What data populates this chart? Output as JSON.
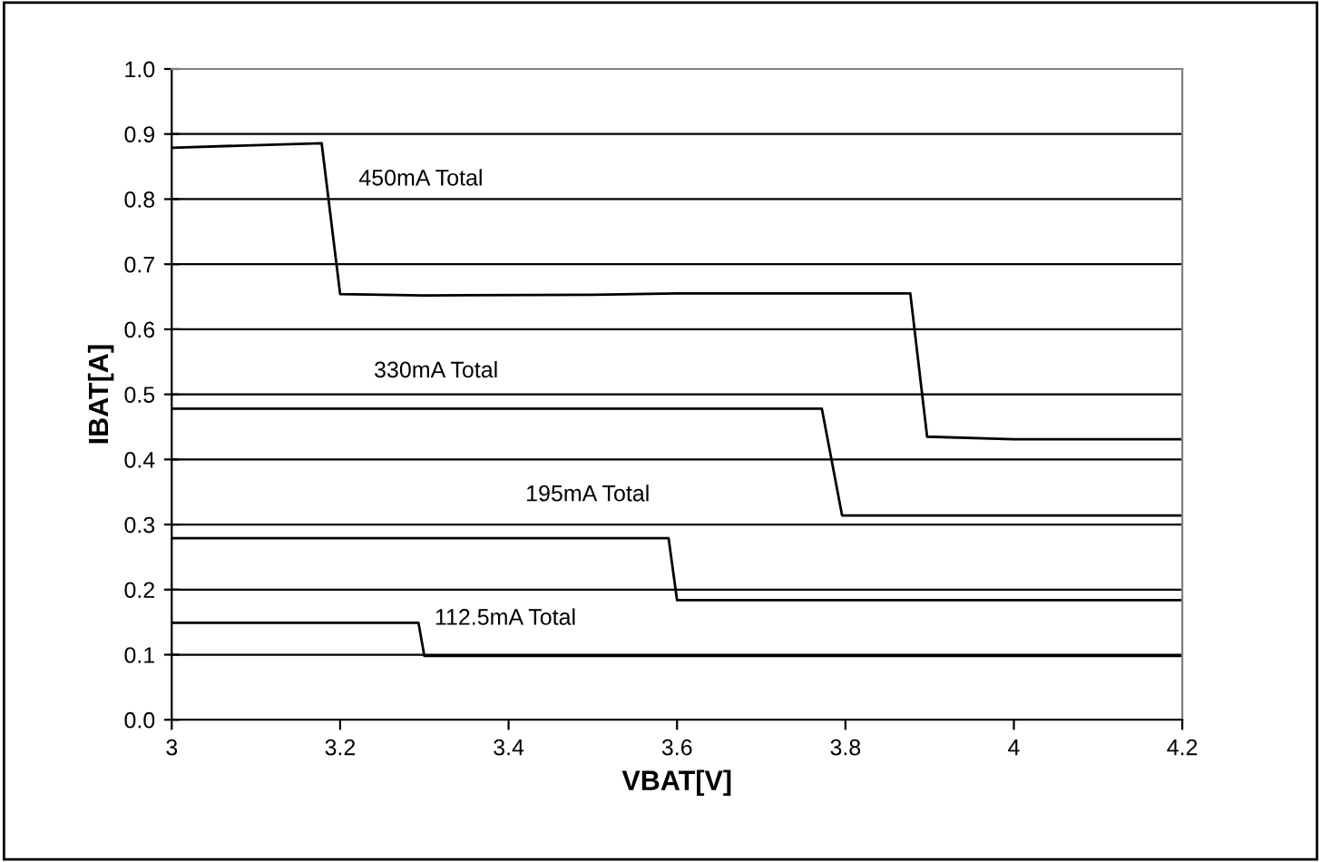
{
  "chart_data": {
    "type": "line",
    "xlabel": "VBAT[V]",
    "ylabel": "IBAT[A]",
    "series": [
      {
        "name": "450mA Total",
        "color": "#000000",
        "x": [
          3,
          3.178,
          3.2,
          3.3,
          3.5,
          3.6,
          3.877,
          3.897,
          4.0,
          4.2
        ],
        "values": [
          0.879,
          0.886,
          0.654,
          0.652,
          0.653,
          0.655,
          0.655,
          0.435,
          0.431,
          0.431
        ]
      },
      {
        "name": "330mA Total",
        "color": "#000000",
        "x": [
          3,
          3.772,
          3.796,
          4.2
        ],
        "values": [
          0.478,
          0.478,
          0.314,
          0.314
        ]
      },
      {
        "name": "195mA Total",
        "color": "#000000",
        "x": [
          3,
          3.59,
          3.6,
          4.2
        ],
        "values": [
          0.279,
          0.279,
          0.184,
          0.184
        ]
      },
      {
        "name": "112.5mA Total",
        "color": "#000000",
        "x": [
          3,
          3.293,
          3.3,
          4.2
        ],
        "values": [
          0.149,
          0.149,
          0.098,
          0.098
        ]
      }
    ],
    "xlim": [
      3,
      4.2
    ],
    "xticks": [
      3,
      3.2,
      3.4,
      3.6,
      3.8,
      4,
      4.2
    ],
    "ylim": [
      0,
      1
    ],
    "yticks": [
      {
        "value": 0,
        "label": "0.0"
      },
      {
        "value": 0.1,
        "label": "0.1"
      },
      {
        "value": 0.2,
        "label": "0.2"
      },
      {
        "value": 0.3,
        "label": "0.3"
      },
      {
        "value": 0.4,
        "label": "0.4"
      },
      {
        "value": 0.5,
        "label": "0.5"
      },
      {
        "value": 0.6,
        "label": "0.6"
      },
      {
        "value": 0.7,
        "label": "0.7"
      },
      {
        "value": 0.8,
        "label": "0.8"
      },
      {
        "value": 0.9,
        "label": "0.9"
      },
      {
        "value": 1,
        "label": "1.0"
      }
    ],
    "grid": "y",
    "marker": "none",
    "line_style": "solid",
    "legend": false
  }
}
